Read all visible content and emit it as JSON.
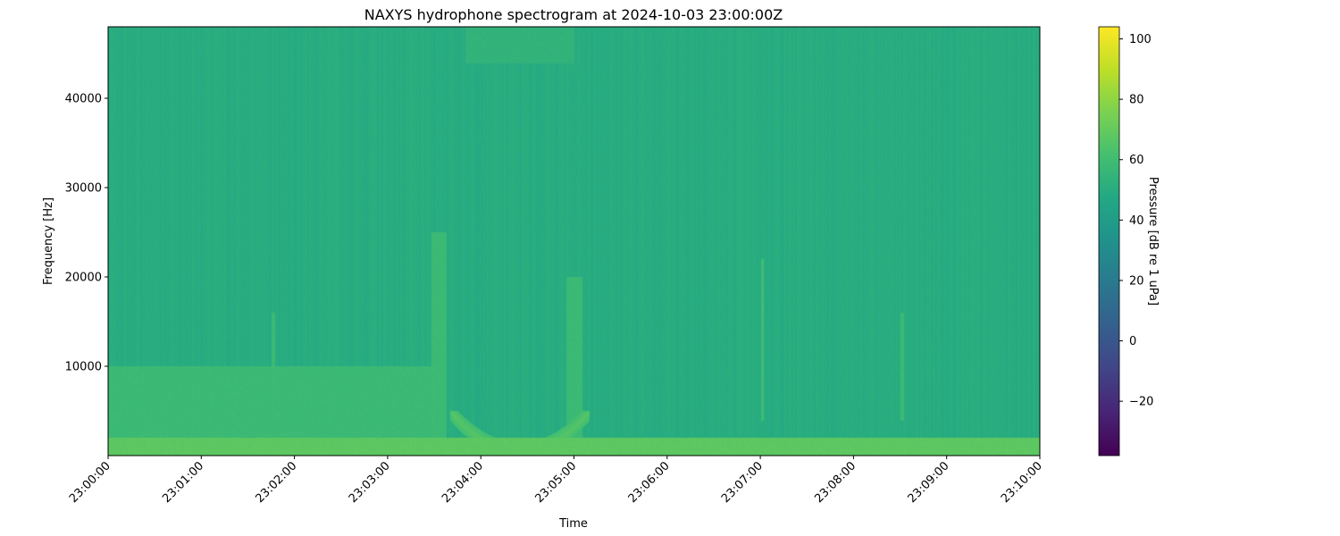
{
  "chart_data": {
    "type": "heatmap",
    "title": "NAXYS hydrophone spectrogram at 2024-10-03 23:00:00Z",
    "xlabel": "Time",
    "ylabel": "Frequency [Hz]",
    "x_range": [
      "23:00:00",
      "23:10:00"
    ],
    "x_ticks": [
      "23:00:00",
      "23:01:00",
      "23:02:00",
      "23:03:00",
      "23:04:00",
      "23:05:00",
      "23:06:00",
      "23:07:00",
      "23:08:00",
      "23:09:00",
      "23:10:00"
    ],
    "ylim": [
      0,
      48000
    ],
    "y_ticks": [
      10000,
      20000,
      30000,
      40000
    ],
    "colorbar": {
      "label": "Pressure [dB re 1 uPa]",
      "range": [
        -38,
        104
      ],
      "ticks": [
        -20,
        0,
        20,
        40,
        60,
        80,
        100
      ],
      "colormap": "viridis"
    },
    "background_level_db": 50,
    "features": [
      {
        "description": "strong low-frequency band",
        "freq_range": [
          0,
          2000
        ],
        "time_range": [
          "23:00:00",
          "23:10:00"
        ],
        "level_db": 68
      },
      {
        "description": "tonal harmonics",
        "freq_range": [
          1000,
          10000
        ],
        "time_range": [
          "23:00:00",
          "23:03:30"
        ],
        "level_db": 58
      },
      {
        "description": "broadband transient",
        "freq_range": [
          0,
          25000
        ],
        "time_range": [
          "23:03:28",
          "23:03:38"
        ],
        "level_db": 58
      },
      {
        "description": "curved low-frequency arc",
        "freq_range": [
          500,
          5000
        ],
        "time_range": [
          "23:03:40",
          "23:05:10"
        ],
        "level_db": 66
      },
      {
        "description": "broadband transient",
        "freq_range": [
          0,
          20000
        ],
        "time_range": [
          "23:04:55",
          "23:05:05"
        ],
        "level_db": 58
      },
      {
        "description": "high-frequency patch",
        "freq_range": [
          44000,
          48000
        ],
        "time_range": [
          "23:03:50",
          "23:05:00"
        ],
        "level_db": 54
      },
      {
        "description": "short vertical transient",
        "freq_range": [
          4000,
          16000
        ],
        "time_range": [
          "23:01:45",
          "23:01:47"
        ],
        "level_db": 58
      },
      {
        "description": "short vertical transient",
        "freq_range": [
          4000,
          22000
        ],
        "time_range": [
          "23:07:00",
          "23:07:02"
        ],
        "level_db": 60
      },
      {
        "description": "short vertical transient",
        "freq_range": [
          4000,
          16000
        ],
        "time_range": [
          "23:08:30",
          "23:08:32"
        ],
        "level_db": 58
      }
    ]
  }
}
